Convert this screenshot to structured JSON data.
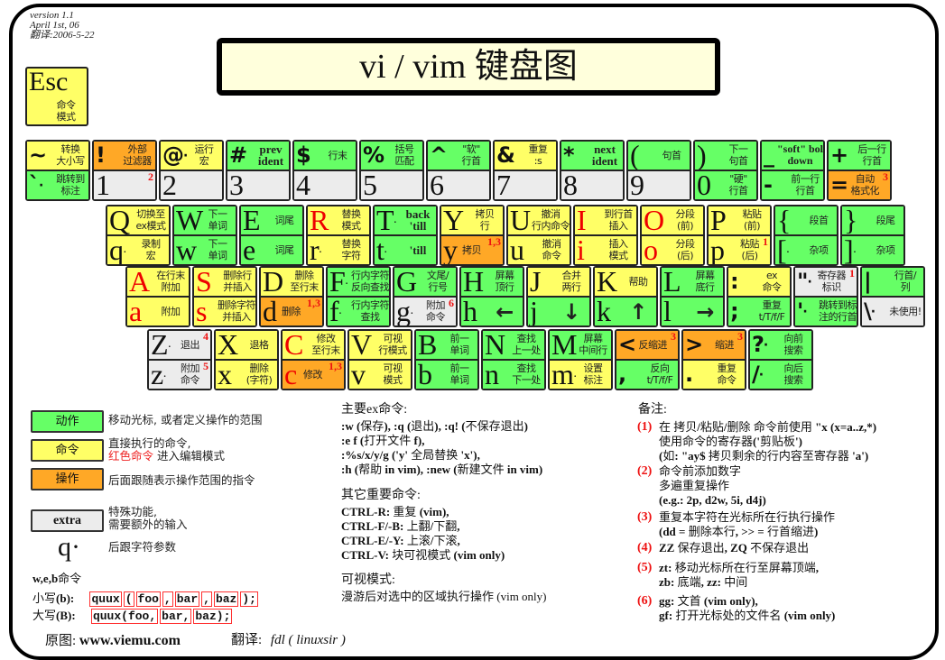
{
  "version": [
    "version 1.1",
    "April 1st, 06",
    "翻译:2006-5-22"
  ],
  "title": "vi / vim 键盘图",
  "colors": {
    "motion": "#66ff66",
    "command": "#ffff66",
    "operator": "#ffa826",
    "extra": "#ececec",
    "insert_red": "#ee0000"
  },
  "esc": {
    "char": "Esc",
    "desc": "命令\n模式"
  },
  "rows": [
    [
      {
        "top": {
          "char": "~",
          "desc": "转换\n大小写",
          "color": "y"
        },
        "bottom": {
          "char": "`",
          "dot": true,
          "desc": "跳转到\n标注",
          "color": "g"
        }
      },
      {
        "top": {
          "char": "!",
          "desc": "外部\n过滤器",
          "color": "o"
        },
        "bottom": {
          "char": "1",
          "desc": "",
          "color": "x",
          "note": "2"
        }
      },
      {
        "top": {
          "char": "@",
          "dot": true,
          "desc": "运行\n宏",
          "color": "y"
        },
        "bottom": {
          "char": "2",
          "desc": "",
          "color": "x"
        }
      },
      {
        "top": {
          "char": "#",
          "desc": "prev\nident",
          "bold": true,
          "color": "g"
        },
        "bottom": {
          "char": "3",
          "desc": "",
          "color": "x"
        }
      },
      {
        "top": {
          "char": "$",
          "desc": "行末",
          "color": "g"
        },
        "bottom": {
          "char": "4",
          "desc": "",
          "color": "x"
        }
      },
      {
        "top": {
          "char": "%",
          "desc": "括号\n匹配",
          "color": "g"
        },
        "bottom": {
          "char": "5",
          "desc": "",
          "color": "x"
        }
      },
      {
        "top": {
          "char": "^",
          "desc": "\"软\"\n行首",
          "color": "g"
        },
        "bottom": {
          "char": "6",
          "desc": "",
          "color": "x"
        }
      },
      {
        "top": {
          "char": "&",
          "desc": "重复\n:s",
          "color": "y"
        },
        "bottom": {
          "char": "7",
          "desc": "",
          "color": "x"
        }
      },
      {
        "top": {
          "char": "*",
          "desc": "next\nident",
          "bold": true,
          "color": "g"
        },
        "bottom": {
          "char": "8",
          "desc": "",
          "color": "x"
        }
      },
      {
        "top": {
          "char": "(",
          "desc": "句首",
          "color": "g"
        },
        "bottom": {
          "char": "9",
          "desc": "",
          "color": "x"
        }
      },
      {
        "top": {
          "char": ")",
          "desc": "下一\n句首",
          "color": "g"
        },
        "bottom": {
          "char": "0",
          "desc": "\"硬\"\n行首",
          "color": "g"
        }
      },
      {
        "top": {
          "char": "_",
          "desc": "\"soft\" bol\ndown",
          "bold": true,
          "color": "g"
        },
        "bottom": {
          "char": "-",
          "desc": "前一行\n行首",
          "color": "g"
        }
      },
      {
        "top": {
          "char": "+",
          "desc": "后一行\n行首",
          "color": "g"
        },
        "bottom": {
          "char": "=",
          "desc": "自动\n格式化",
          "color": "o",
          "note": "3"
        }
      }
    ],
    [
      {
        "top": {
          "char": "Q",
          "desc": "切换至\nex模式",
          "color": "y"
        },
        "bottom": {
          "char": "q",
          "dot": true,
          "desc": "录制\n宏",
          "color": "y"
        }
      },
      {
        "top": {
          "char": "W",
          "desc": "下一\n单词",
          "color": "g"
        },
        "bottom": {
          "char": "w",
          "desc": "下一\n单词",
          "color": "g"
        }
      },
      {
        "top": {
          "char": "E",
          "desc": "词尾",
          "color": "g"
        },
        "bottom": {
          "char": "e",
          "desc": "词尾",
          "color": "g"
        }
      },
      {
        "top": {
          "char": "R",
          "red": true,
          "desc": "替换\n模式",
          "color": "y"
        },
        "bottom": {
          "char": "r",
          "dot": true,
          "desc": "替换\n字符",
          "color": "y"
        }
      },
      {
        "top": {
          "char": "T",
          "dot": true,
          "desc": "back\n'till",
          "bold": true,
          "color": "g"
        },
        "bottom": {
          "char": "t",
          "dot": true,
          "desc": "'till",
          "bold": true,
          "color": "g"
        }
      },
      {
        "top": {
          "char": "Y",
          "desc": "拷贝\n行",
          "color": "y"
        },
        "bottom": {
          "char": "y",
          "desc": "拷贝",
          "color": "o",
          "note": "1,3"
        }
      },
      {
        "top": {
          "char": "U",
          "desc": "撤消\n行内命令",
          "color": "y"
        },
        "bottom": {
          "char": "u",
          "desc": "撤消\n命令",
          "color": "y"
        }
      },
      {
        "top": {
          "char": "I",
          "red": true,
          "desc": "到行首\n插入",
          "color": "y"
        },
        "bottom": {
          "char": "i",
          "red": true,
          "desc": "插入\n模式",
          "color": "y"
        }
      },
      {
        "top": {
          "char": "O",
          "red": true,
          "desc": "分段\n(前)",
          "color": "y"
        },
        "bottom": {
          "char": "o",
          "red": true,
          "desc": "分段\n(后)",
          "color": "y"
        }
      },
      {
        "top": {
          "char": "P",
          "desc": "粘贴\n(前)",
          "color": "y"
        },
        "bottom": {
          "char": "p",
          "desc": "粘贴\n(后)",
          "color": "y",
          "note": "1"
        }
      },
      {
        "top": {
          "char": "{",
          "desc": "段首",
          "color": "g"
        },
        "bottom": {
          "char": "[",
          "dot": true,
          "desc": "杂项",
          "color": "g"
        }
      },
      {
        "top": {
          "char": "}",
          "desc": "段尾",
          "color": "g"
        },
        "bottom": {
          "char": "]",
          "dot": true,
          "desc": "杂项",
          "color": "g"
        }
      }
    ],
    [
      {
        "top": {
          "char": "A",
          "red": true,
          "desc": "在行末\n附加",
          "color": "y"
        },
        "bottom": {
          "char": "a",
          "red": true,
          "desc": "附加",
          "color": "y"
        }
      },
      {
        "top": {
          "char": "S",
          "red": true,
          "desc": "删除行\n并插入",
          "color": "y"
        },
        "bottom": {
          "char": "s",
          "red": true,
          "desc": "删除字符\n并插入",
          "color": "y"
        }
      },
      {
        "top": {
          "char": "D",
          "desc": "删除\n至行末",
          "color": "y"
        },
        "bottom": {
          "char": "d",
          "desc": "删除",
          "color": "o",
          "note": "1,3"
        }
      },
      {
        "top": {
          "char": "F",
          "dot": true,
          "desc": "行内字符\n反向查找",
          "color": "g"
        },
        "bottom": {
          "char": "f",
          "dot": true,
          "desc": "行内字符\n查找",
          "color": "g"
        }
      },
      {
        "top": {
          "char": "G",
          "desc": "文尾/\n行号",
          "color": "g"
        },
        "bottom": {
          "char": "g",
          "dot": true,
          "desc": "附加\n命令",
          "color": "x",
          "note": "6"
        }
      },
      {
        "top": {
          "char": "H",
          "desc": "屏幕\n顶行",
          "color": "g"
        },
        "bottom": {
          "char": "h",
          "desc": "←",
          "color": "g"
        }
      },
      {
        "top": {
          "char": "J",
          "desc": "合并\n两行",
          "color": "y"
        },
        "bottom": {
          "char": "j",
          "desc": "↓",
          "color": "g"
        }
      },
      {
        "top": {
          "char": "K",
          "desc": "帮助",
          "color": "y"
        },
        "bottom": {
          "char": "k",
          "desc": "↑",
          "color": "g"
        }
      },
      {
        "top": {
          "char": "L",
          "desc": "屏幕\n底行",
          "color": "g"
        },
        "bottom": {
          "char": "l",
          "desc": "→",
          "color": "g"
        }
      },
      {
        "top": {
          "char": ":",
          "desc": "ex\n命令",
          "color": "y"
        },
        "bottom": {
          "char": ";",
          "desc": "重复\nt/T/f/F",
          "color": "g"
        }
      },
      {
        "top": {
          "char": "\"",
          "dot": true,
          "desc": "寄存器\n标识",
          "color": "x",
          "note": "1"
        },
        "bottom": {
          "char": "'",
          "dot": true,
          "desc": "跳转到标\n注的行首",
          "color": "g"
        }
      },
      {
        "top": {
          "char": "|",
          "desc": "行首/\n列",
          "color": "g"
        },
        "bottom": {
          "char": "\\",
          "dot": true,
          "desc": "未使用!",
          "color": "x"
        }
      }
    ],
    [
      {
        "top": {
          "char": "Z",
          "dot": true,
          "desc": "退出",
          "color": "x",
          "note": "4"
        },
        "bottom": {
          "char": "z",
          "dot": true,
          "desc": "附加\n命令",
          "color": "x",
          "note": "5"
        }
      },
      {
        "top": {
          "char": "X",
          "desc": "退格",
          "color": "y"
        },
        "bottom": {
          "char": "x",
          "desc": "删除\n(字符)",
          "color": "y"
        }
      },
      {
        "top": {
          "char": "C",
          "red": true,
          "desc": "修改\n至行末",
          "color": "y"
        },
        "bottom": {
          "char": "c",
          "red": true,
          "desc": "修改",
          "color": "o",
          "note": "1,3"
        }
      },
      {
        "top": {
          "char": "V",
          "desc": "可视\n行模式",
          "color": "y"
        },
        "bottom": {
          "char": "v",
          "desc": "可视\n模式",
          "color": "y"
        }
      },
      {
        "top": {
          "char": "B",
          "desc": "前一\n单词",
          "color": "g"
        },
        "bottom": {
          "char": "b",
          "desc": "前一\n单词",
          "color": "g"
        }
      },
      {
        "top": {
          "char": "N",
          "desc": "查找\n上一处",
          "color": "g"
        },
        "bottom": {
          "char": "n",
          "desc": "查找\n下一处",
          "color": "g"
        }
      },
      {
        "top": {
          "char": "M",
          "desc": "屏幕\n中间行",
          "color": "g"
        },
        "bottom": {
          "char": "m",
          "dot": true,
          "desc": "设置\n标注",
          "color": "y"
        }
      },
      {
        "top": {
          "char": "<",
          "desc": "反缩进",
          "color": "o",
          "note": "3"
        },
        "bottom": {
          "char": ",",
          "desc": "反向\nt/T/f/F",
          "color": "g"
        }
      },
      {
        "top": {
          "char": ">",
          "desc": "缩进",
          "color": "o",
          "note": "3"
        },
        "bottom": {
          "char": ".",
          "desc": "重复\n命令",
          "color": "y"
        }
      },
      {
        "top": {
          "char": "?",
          "dot": true,
          "desc": "向前\n搜索",
          "color": "g"
        },
        "bottom": {
          "char": "/",
          "dot": true,
          "desc": "向后\n搜索",
          "color": "g"
        }
      }
    ]
  ],
  "legend": [
    {
      "label": "动作",
      "text": "移动光标, 或者定义操作的范围"
    },
    {
      "label": "命令",
      "text": "直接执行的命令,",
      "text_red": "红色命令",
      "text2": " 进入编辑模式"
    },
    {
      "label": "操作",
      "text": "后面跟随表示操作范围的指令"
    },
    {
      "label": "extra",
      "text": "特殊功能,\n需要额外的输入"
    },
    {
      "label": "q·",
      "text": "后跟字符参数"
    }
  ],
  "web": {
    "title_bold": "w,e,b",
    "title": "命令",
    "lower_label": "小写",
    "lower_key": "(b):",
    "lower_segments": [
      "quux",
      "(",
      "foo",
      ",",
      "bar",
      ",",
      "baz",
      ");"
    ],
    "upper_label": "大写",
    "upper_key": "(B):",
    "upper_segments": [
      "quux(foo,",
      "bar,",
      "baz);"
    ]
  },
  "footer": {
    "source_label": "原图:",
    "source": "www.viemu.com",
    "translator_label": "翻译:",
    "translator": "fdl ( linuxsir )"
  },
  "ex": {
    "heading": "主要ex命令:",
    "lines": [
      ":w (保存), :q (退出), :q! (不保存退出)",
      ":e f (打开文件 f),",
      ":%s/x/y/g ('y' 全局替换 'x'),",
      ":h (帮助 in vim), :new (新建文件 in vim)"
    ]
  },
  "other": {
    "heading": "其它重要命令:",
    "lines": [
      "CTRL-R: 重复 (vim),",
      "CTRL-F/-B: 上翻/下翻,",
      "CTRL-E/-Y: 上滚/下滚,",
      "CTRL-V: 块可视模式 (vim only)"
    ]
  },
  "visual": {
    "heading": "可视模式:",
    "text": "漫游后对选中的区域执行操作 (vim only)"
  },
  "notes": {
    "heading": "备注:",
    "items": [
      {
        "num": "(1)",
        "lines": [
          "在 拷贝/粘贴/删除 命令前使用 \"x (x=a..z,*)",
          "使用命令的寄存器('剪贴板')",
          "(如: \"ay$ 拷贝剩余的行内容至寄存器 'a')"
        ]
      },
      {
        "num": "(2)",
        "lines": [
          "命令前添加数字",
          "多遍重复操作",
          "(e.g.: 2p, d2w, 5i, d4j)"
        ]
      },
      {
        "num": "(3)",
        "lines": [
          "重复本字符在光标所在行执行操作",
          "(dd = 删除本行, >> = 行首缩进)"
        ]
      },
      {
        "num": "(4)",
        "lines": [
          "ZZ 保存退出, ZQ 不保存退出"
        ]
      },
      {
        "num": "(5)",
        "lines": [
          "zt: 移动光标所在行至屏幕顶端,",
          "zb: 底端, zz: 中间"
        ]
      },
      {
        "num": "(6)",
        "lines": [
          "gg: 文首 (vim only),",
          "gf: 打开光标处的文件名 (vim only)"
        ]
      }
    ]
  }
}
